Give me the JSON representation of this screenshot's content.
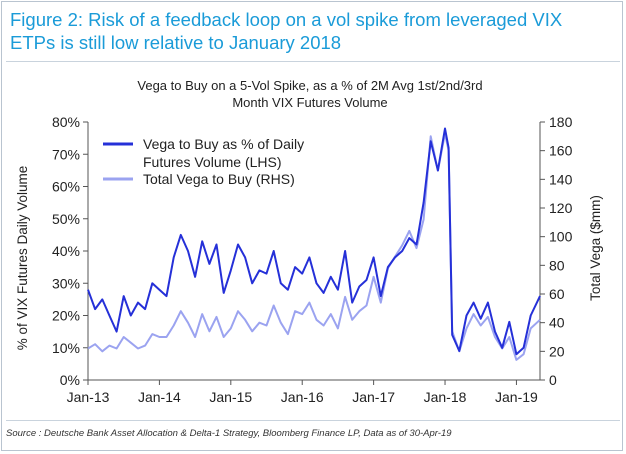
{
  "figure": {
    "title": "Figure 2: Risk of a feedback loop on a vol spike from leveraged VIX ETPs is still low relative to January 2018",
    "source": "Source : Deutsche Bank Asset Allocation & Delta-1 Strategy, Bloomberg Finance LP, Data as of 30-Apr-19"
  },
  "chart_data": {
    "type": "line",
    "title_lines": [
      "Vega to Buy on a 5-Vol Spike, as a % of 2M Avg 1st/2nd/3rd",
      "Month VIX Futures Volume"
    ],
    "ylabel": "% of VIX Futures Daily Volume",
    "y2label": "Total Vega ($mm)",
    "xlabel": "",
    "x_ticks": [
      "Jan-13",
      "Jan-14",
      "Jan-15",
      "Jan-16",
      "Jan-17",
      "Jan-18",
      "Jan-19"
    ],
    "x_range": [
      2013.0,
      2019.33
    ],
    "ylim": [
      0,
      80
    ],
    "y_ticks": [
      "0%",
      "10%",
      "20%",
      "30%",
      "40%",
      "50%",
      "60%",
      "70%",
      "80%"
    ],
    "y2lim": [
      0,
      180
    ],
    "y2_ticks": [
      "0",
      "20",
      "40",
      "60",
      "80",
      "100",
      "120",
      "140",
      "160",
      "180"
    ],
    "grid": false,
    "legend_position": "top-left",
    "colors": {
      "lhs": "#2530d8",
      "rhs": "#9ba3f0",
      "axis": "#555555"
    },
    "series": [
      {
        "name": "Vega to Buy as % of Daily Futures Volume (LHS)",
        "legend_lines": [
          "Vega to Buy as % of Daily",
          "Futures Volume (LHS)"
        ],
        "axis": "left",
        "x": [
          2013.0,
          2013.1,
          2013.2,
          2013.3,
          2013.4,
          2013.5,
          2013.6,
          2013.7,
          2013.8,
          2013.9,
          2014.0,
          2014.1,
          2014.2,
          2014.3,
          2014.4,
          2014.5,
          2014.6,
          2014.7,
          2014.8,
          2014.9,
          2015.0,
          2015.1,
          2015.2,
          2015.3,
          2015.4,
          2015.5,
          2015.6,
          2015.7,
          2015.8,
          2015.9,
          2016.0,
          2016.1,
          2016.2,
          2016.3,
          2016.4,
          2016.5,
          2016.6,
          2016.7,
          2016.8,
          2016.9,
          2017.0,
          2017.1,
          2017.2,
          2017.3,
          2017.4,
          2017.5,
          2017.6,
          2017.7,
          2017.8,
          2017.9,
          2018.0,
          2018.05,
          2018.1,
          2018.2,
          2018.3,
          2018.4,
          2018.5,
          2018.6,
          2018.7,
          2018.8,
          2018.9,
          2019.0,
          2019.1,
          2019.2,
          2019.33
        ],
        "values": [
          28,
          22,
          25,
          20,
          15,
          26,
          20,
          24,
          22,
          30,
          28,
          26,
          38,
          45,
          40,
          32,
          43,
          36,
          42,
          27,
          34,
          42,
          38,
          30,
          34,
          33,
          40,
          30,
          28,
          35,
          33,
          38,
          30,
          27,
          32,
          28,
          40,
          24,
          29,
          31,
          38,
          26,
          35,
          38,
          40,
          44,
          42,
          55,
          74,
          65,
          78,
          72,
          14,
          9,
          20,
          24,
          19,
          24,
          15,
          10,
          18,
          8,
          10,
          20,
          26
        ]
      },
      {
        "name": "Total Vega to Buy (RHS)",
        "legend_lines": [
          "Total Vega to Buy (RHS)"
        ],
        "axis": "right",
        "x": [
          2013.0,
          2013.1,
          2013.2,
          2013.3,
          2013.4,
          2013.5,
          2013.6,
          2013.7,
          2013.8,
          2013.9,
          2014.0,
          2014.1,
          2014.2,
          2014.3,
          2014.4,
          2014.5,
          2014.6,
          2014.7,
          2014.8,
          2014.9,
          2015.0,
          2015.1,
          2015.2,
          2015.3,
          2015.4,
          2015.5,
          2015.6,
          2015.7,
          2015.8,
          2015.9,
          2016.0,
          2016.1,
          2016.2,
          2016.3,
          2016.4,
          2016.5,
          2016.6,
          2016.7,
          2016.8,
          2016.9,
          2017.0,
          2017.1,
          2017.2,
          2017.3,
          2017.4,
          2017.5,
          2017.6,
          2017.7,
          2017.8,
          2017.9,
          2018.0,
          2018.05,
          2018.1,
          2018.2,
          2018.3,
          2018.4,
          2018.5,
          2018.6,
          2018.7,
          2018.8,
          2018.9,
          2019.0,
          2019.1,
          2019.2,
          2019.33
        ],
        "values": [
          22,
          25,
          20,
          24,
          22,
          30,
          26,
          22,
          24,
          32,
          30,
          30,
          38,
          48,
          40,
          30,
          46,
          34,
          44,
          30,
          36,
          48,
          42,
          34,
          40,
          38,
          52,
          40,
          32,
          48,
          46,
          54,
          42,
          38,
          46,
          36,
          58,
          42,
          48,
          52,
          72,
          54,
          78,
          86,
          94,
          104,
          92,
          112,
          170,
          146,
          172,
          160,
          34,
          20,
          36,
          46,
          38,
          44,
          30,
          22,
          30,
          14,
          18,
          36,
          42
        ]
      }
    ]
  }
}
